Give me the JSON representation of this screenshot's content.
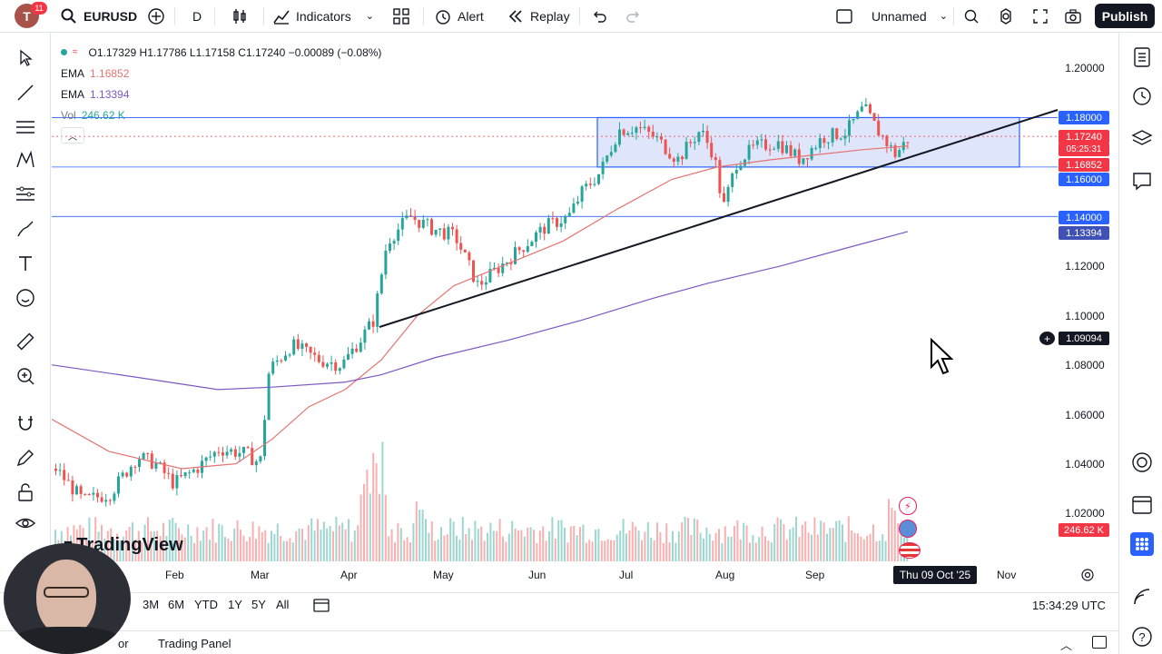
{
  "topbar": {
    "avatar_letter": "T",
    "notifications": "11",
    "symbol": "EURUSD",
    "interval": "D",
    "indicators_label": "Indicators",
    "alert_label": "Alert",
    "replay_label": "Replay",
    "layout_name": "Unnamed",
    "publish_label": "Publish"
  },
  "legend": {
    "ohlc": "O1.17329 H1.17786 L1.17158 C1.17240 −0.00089 (−0.08%)",
    "ema1_label": "EMA",
    "ema1_value": "1.16852",
    "ema2_label": "EMA",
    "ema2_value": "1.13394",
    "vol_label": "Vol",
    "vol_value": "246.62 K"
  },
  "price_axis": {
    "ticks": [
      "1.20000",
      "1.12000",
      "1.10000",
      "1.08000",
      "1.06000",
      "1.04000",
      "1.02000"
    ],
    "labels": {
      "level_high": "1.18000",
      "last_price": "1.17240",
      "countdown": "05:25:31",
      "ema_fast": "1.16852",
      "level_mid": "1.16000",
      "level_low": "1.14000",
      "ema_slow": "1.13394",
      "crosshair": "1.09094",
      "volume": "246.62 K"
    }
  },
  "time_axis": {
    "ticks": [
      "Feb",
      "Mar",
      "Apr",
      "May",
      "Jun",
      "Jul",
      "Aug",
      "Sep",
      "Nov"
    ],
    "crosshair": "Thu 09 Oct '25"
  },
  "bottombar": {
    "ranges": [
      "3M",
      "6M",
      "YTD",
      "1Y",
      "5Y",
      "All"
    ],
    "clock": "15:34:29 UTC",
    "panel_left": "or",
    "trading_panel": "Trading Panel"
  },
  "watermark": "TradingView",
  "colors": {
    "up": "#26a69a",
    "down": "#ef5350",
    "ema_fast": "#e57373",
    "ema_slow": "#7e57c2",
    "level": "#2962ff",
    "box_fill": "#c5cff5"
  }
}
